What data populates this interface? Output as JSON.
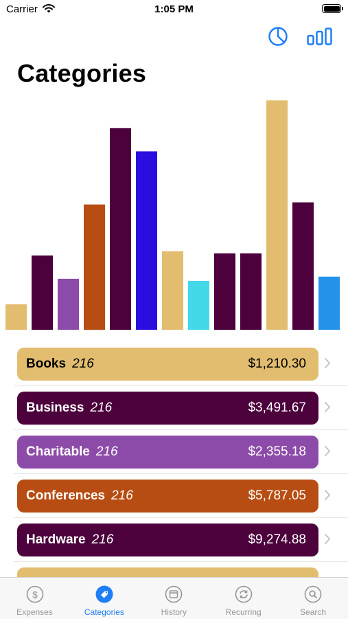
{
  "status": {
    "carrier": "Carrier",
    "time": "1:05 PM"
  },
  "nav": {
    "pie_icon": "pie-chart-icon",
    "bar_icon": "bar-chart-icon",
    "accent": "#1e7ef5"
  },
  "title": "Categories",
  "chart_data": {
    "type": "bar",
    "values": [
      12,
      35,
      24,
      59,
      95,
      84,
      37,
      23,
      36,
      36,
      108,
      60,
      25
    ],
    "colors": [
      "#e2bd6f",
      "#4c003c",
      "#8d4ba9",
      "#b74d12",
      "#4c003c",
      "#2a0ee0",
      "#e2bd6f",
      "#42d8e8",
      "#4c003c",
      "#4c003c",
      "#e2bd6f",
      "#4c003c",
      "#2592ea"
    ],
    "ylim": [
      0,
      110
    ]
  },
  "categories": [
    {
      "name": "Books",
      "count": "216",
      "amount": "$1,210.30",
      "bg": "#e2bd6f",
      "fg": "#000000"
    },
    {
      "name": "Business",
      "count": "216",
      "amount": "$3,491.67",
      "bg": "#4c003c",
      "fg": "#ffffff"
    },
    {
      "name": "Charitable",
      "count": "216",
      "amount": "$2,355.18",
      "bg": "#8d4ba9",
      "fg": "#ffffff"
    },
    {
      "name": "Conferences",
      "count": "216",
      "amount": "$5,787.05",
      "bg": "#b74d12",
      "fg": "#ffffff"
    },
    {
      "name": "Hardware",
      "count": "216",
      "amount": "$9,274.88",
      "bg": "#4c003c",
      "fg": "#ffffff"
    },
    {
      "name": "",
      "count": "",
      "amount": "",
      "bg": "#e2bd6f",
      "fg": "#000000"
    }
  ],
  "tabs": [
    {
      "label": "Expenses",
      "icon": "dollar-circle-icon",
      "active": false
    },
    {
      "label": "Categories",
      "icon": "tag-circle-icon",
      "active": true
    },
    {
      "label": "History",
      "icon": "calendar-circle-icon",
      "active": false
    },
    {
      "label": "Recurring",
      "icon": "repeat-circle-icon",
      "active": false
    },
    {
      "label": "Search",
      "icon": "search-circle-icon",
      "active": false
    }
  ]
}
